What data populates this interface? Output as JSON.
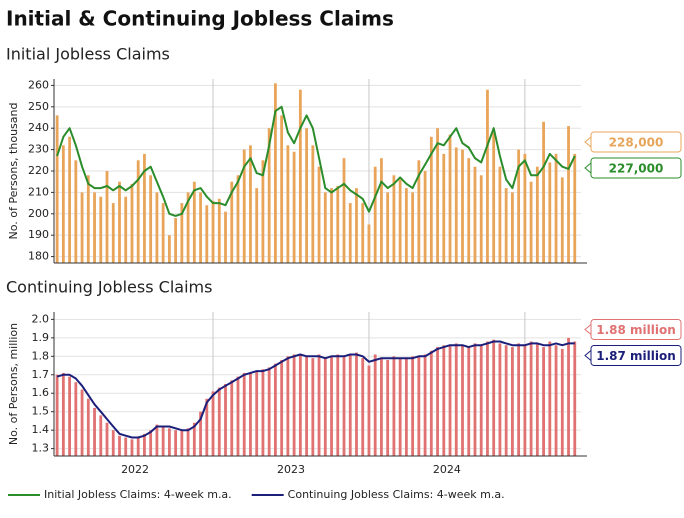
{
  "title": "Initial & Continuing Jobless Claims",
  "chart_data": [
    {
      "type": "bar",
      "subtitle": "Initial Jobless Claims",
      "ylabel": "No. of Persons, thousand",
      "x": [
        2022,
        2022.04,
        2022.08,
        2022.12,
        2022.16,
        2022.2,
        2022.24,
        2022.28,
        2022.32,
        2022.36,
        2022.4,
        2022.44,
        2022.48,
        2022.52,
        2022.56,
        2022.6,
        2022.64,
        2022.68,
        2022.72,
        2022.76,
        2022.8,
        2022.84,
        2022.88,
        2022.92,
        2022.96,
        2023,
        2023.04,
        2023.08,
        2023.12,
        2023.16,
        2023.2,
        2023.24,
        2023.28,
        2023.32,
        2023.36,
        2023.4,
        2023.44,
        2023.48,
        2023.52,
        2023.56,
        2023.6,
        2023.64,
        2023.68,
        2023.72,
        2023.76,
        2023.8,
        2023.84,
        2023.88,
        2023.92,
        2023.96,
        2024,
        2024.04,
        2024.08,
        2024.12,
        2024.16,
        2024.2,
        2024.24,
        2024.28,
        2024.32,
        2024.36,
        2024.4,
        2024.44,
        2024.48,
        2024.52,
        2024.56,
        2024.6,
        2024.64,
        2024.68,
        2024.72,
        2024.76,
        2024.8,
        2024.84,
        2024.88,
        2024.92,
        2024.96,
        2025,
        2025.04,
        2025.08,
        2025.12,
        2025.16,
        2025.2,
        2025.24,
        2025.28,
        2025.32
      ],
      "xlim": [
        2021.98,
        2025.36
      ],
      "xgrid": [
        2023,
        2024,
        2025
      ],
      "ylim": [
        177,
        263
      ],
      "yticks": [
        180,
        190,
        200,
        210,
        220,
        230,
        240,
        250,
        260
      ],
      "grid": true,
      "series": [
        {
          "type": "bar",
          "color": "#e8a55a",
          "end_label": "228,000",
          "values": [
            246,
            232,
            236,
            225,
            210,
            218,
            210,
            208,
            220,
            205,
            215,
            208,
            214,
            225,
            228,
            218,
            210,
            205,
            190,
            198,
            205,
            210,
            215,
            210,
            204,
            206,
            207,
            201,
            215,
            218,
            230,
            232,
            212,
            225,
            240,
            261,
            246,
            232,
            229,
            258,
            240,
            232,
            222,
            210,
            212,
            213,
            226,
            205,
            212,
            205,
            195,
            222,
            226,
            210,
            218,
            216,
            212,
            210,
            225,
            220,
            236,
            240,
            228,
            237,
            231,
            230,
            226,
            222,
            218,
            258,
            238,
            222,
            212,
            210,
            230,
            228,
            215,
            222,
            243,
            224,
            228,
            217,
            241,
            228
          ]
        },
        {
          "type": "line",
          "name": "Initial Jobless Claims: 4-week m.a.",
          "color": "#2a8c2a",
          "end_label": "227,000",
          "values": [
            227,
            236,
            240,
            232,
            222,
            214,
            212,
            212,
            213,
            211,
            213,
            211,
            213,
            216,
            220,
            222,
            215,
            208,
            200,
            199,
            200,
            206,
            211,
            212,
            208,
            205,
            205,
            204,
            210,
            215,
            222,
            226,
            219,
            218,
            232,
            248,
            250,
            238,
            233,
            240,
            246,
            240,
            226,
            212,
            210,
            212,
            214,
            211,
            209,
            207,
            201,
            208,
            215,
            212,
            214,
            217,
            214,
            212,
            218,
            223,
            228,
            233,
            232,
            236,
            240,
            233,
            231,
            226,
            224,
            232,
            240,
            227,
            216,
            212,
            222,
            225,
            218,
            218,
            222,
            228,
            225,
            222,
            221,
            227
          ]
        }
      ]
    },
    {
      "type": "bar",
      "subtitle": "Continuing Jobless Claims",
      "ylabel": "No. of Persons, million",
      "x": [
        2022,
        2022.04,
        2022.08,
        2022.12,
        2022.16,
        2022.2,
        2022.24,
        2022.28,
        2022.32,
        2022.36,
        2022.4,
        2022.44,
        2022.48,
        2022.52,
        2022.56,
        2022.6,
        2022.64,
        2022.68,
        2022.72,
        2022.76,
        2022.8,
        2022.84,
        2022.88,
        2022.92,
        2022.96,
        2023,
        2023.04,
        2023.08,
        2023.12,
        2023.16,
        2023.2,
        2023.24,
        2023.28,
        2023.32,
        2023.36,
        2023.4,
        2023.44,
        2023.48,
        2023.52,
        2023.56,
        2023.6,
        2023.64,
        2023.68,
        2023.72,
        2023.76,
        2023.8,
        2023.84,
        2023.88,
        2023.92,
        2023.96,
        2024,
        2024.04,
        2024.08,
        2024.12,
        2024.16,
        2024.2,
        2024.24,
        2024.28,
        2024.32,
        2024.36,
        2024.4,
        2024.44,
        2024.48,
        2024.52,
        2024.56,
        2024.6,
        2024.64,
        2024.68,
        2024.72,
        2024.76,
        2024.8,
        2024.84,
        2024.88,
        2024.92,
        2024.96,
        2025,
        2025.04,
        2025.08,
        2025.12,
        2025.16,
        2025.2,
        2025.24,
        2025.28,
        2025.32
      ],
      "xlim": [
        2021.98,
        2025.36
      ],
      "xgrid": [
        2023,
        2024,
        2025
      ],
      "xticks": [
        {
          "value": 2022.5,
          "label": "2022"
        },
        {
          "value": 2023.5,
          "label": "2023"
        },
        {
          "value": 2024.5,
          "label": "2024"
        }
      ],
      "ylim": [
        1.26,
        2.04
      ],
      "yticks": [
        1.3,
        1.4,
        1.5,
        1.6,
        1.7,
        1.8,
        1.9,
        {
          "value": 2,
          "label": "2.0"
        }
      ],
      "grid": true,
      "series": [
        {
          "type": "bar",
          "color": "#e07272",
          "end_label": "1.88 million",
          "values": [
            1.7,
            1.71,
            1.69,
            1.66,
            1.62,
            1.57,
            1.52,
            1.48,
            1.44,
            1.4,
            1.37,
            1.36,
            1.35,
            1.36,
            1.38,
            1.4,
            1.43,
            1.42,
            1.41,
            1.4,
            1.4,
            1.41,
            1.44,
            1.5,
            1.57,
            1.61,
            1.63,
            1.65,
            1.67,
            1.69,
            1.71,
            1.71,
            1.72,
            1.73,
            1.74,
            1.76,
            1.78,
            1.8,
            1.81,
            1.81,
            1.8,
            1.79,
            1.81,
            1.79,
            1.8,
            1.81,
            1.8,
            1.81,
            1.82,
            1.79,
            1.75,
            1.81,
            1.79,
            1.78,
            1.8,
            1.79,
            1.79,
            1.8,
            1.8,
            1.81,
            1.83,
            1.85,
            1.86,
            1.86,
            1.87,
            1.86,
            1.85,
            1.87,
            1.86,
            1.88,
            1.89,
            1.87,
            1.86,
            1.85,
            1.87,
            1.86,
            1.88,
            1.87,
            1.85,
            1.88,
            1.86,
            1.84,
            1.9,
            1.88
          ]
        },
        {
          "type": "line",
          "name": "Continuing Jobless Claims: 4-week m.a.",
          "color": "#1c1f7a",
          "end_label": "1.87 million",
          "values": [
            1.69,
            1.7,
            1.7,
            1.68,
            1.64,
            1.59,
            1.54,
            1.5,
            1.46,
            1.42,
            1.38,
            1.37,
            1.36,
            1.36,
            1.37,
            1.39,
            1.42,
            1.42,
            1.42,
            1.41,
            1.4,
            1.4,
            1.42,
            1.46,
            1.55,
            1.59,
            1.62,
            1.64,
            1.66,
            1.68,
            1.7,
            1.71,
            1.72,
            1.72,
            1.73,
            1.75,
            1.77,
            1.79,
            1.8,
            1.81,
            1.8,
            1.8,
            1.8,
            1.79,
            1.8,
            1.8,
            1.8,
            1.81,
            1.81,
            1.8,
            1.77,
            1.78,
            1.79,
            1.79,
            1.79,
            1.79,
            1.79,
            1.79,
            1.8,
            1.8,
            1.82,
            1.84,
            1.85,
            1.86,
            1.86,
            1.86,
            1.85,
            1.86,
            1.86,
            1.87,
            1.88,
            1.88,
            1.87,
            1.86,
            1.86,
            1.86,
            1.87,
            1.87,
            1.86,
            1.86,
            1.87,
            1.86,
            1.87,
            1.87
          ]
        }
      ]
    }
  ]
}
